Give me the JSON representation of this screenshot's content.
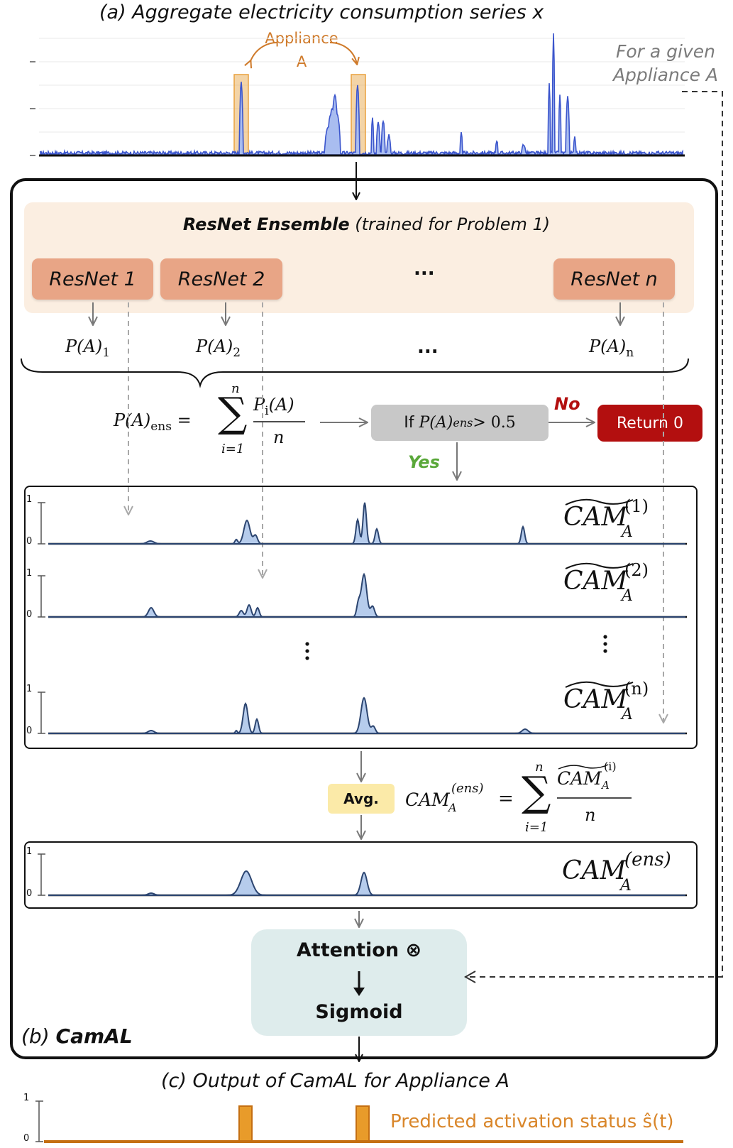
{
  "titles": {
    "aggregate": "(a) Aggregate electricity consumption series x",
    "output": "(c) Output of CamAL for Appliance A",
    "camal_prefix": "(b) ",
    "camal_name": "CamAL"
  },
  "annotations": {
    "given_line1": "For a given",
    "given_line2": "Appliance A",
    "appliance_line1": "Appliance",
    "appliance_line2": "A"
  },
  "ensemble": {
    "title_bold": "ResNet Ensemble",
    "title_rest": " (trained for Problem 1)",
    "models": [
      "ResNet 1",
      "ResNet 2",
      "ResNet n"
    ],
    "ellipsis": "...",
    "probs": [
      {
        "base": "P(A)",
        "sub": "1"
      },
      {
        "base": "P(A)",
        "sub": "2"
      },
      {
        "base": "P(A)",
        "sub": "n"
      }
    ]
  },
  "formulas": {
    "pens_lhs": "P(A)",
    "pens_sub": "ens",
    "sum_top": "n",
    "sum_bottom": "i=1",
    "frac_num": "P",
    "frac_num_sub": "i",
    "frac_num_rest": "(A)",
    "frac_den": "n",
    "cam_ens_lhs": "CAM",
    "cam_ens_sup": "(ens)",
    "cam_ens_sub": "A",
    "cam_ens_num": "CAM",
    "cam_ens_num_sup": "(i)",
    "cam_ens_num_sub": "A"
  },
  "decision": {
    "condition_prefix": "If ",
    "condition_var": "P(A)",
    "condition_sub": "ens",
    "condition_op": " > 0.5",
    "no": "No",
    "yes": "Yes",
    "return": "Return 0"
  },
  "cam_panels": {
    "label_base": "CAM",
    "label_sub": "A",
    "sups": [
      "(1)",
      "(2)",
      "(n)"
    ],
    "ens_sup": "(ens)",
    "axis_top": "1",
    "axis_bottom": "0"
  },
  "avg": "Avg.",
  "attention": {
    "line1": "Attention ⊗",
    "line2": "Sigmoid"
  },
  "output": {
    "predicted_label": "Predicted activation status ŝ(t)",
    "axis_top": "1",
    "axis_bottom": "0"
  },
  "colors": {
    "series_fill": "#a9bdf0",
    "series_line": "#3b55cc",
    "cam_fill": "#b6ccec",
    "cam_line": "#2c4570",
    "highlight": "#e9b15f",
    "output_line": "#d9862a",
    "return_box": "#b30f0f",
    "ensemble_panel": "#fbeee1",
    "resnet_box": "#e8a586",
    "avg_box": "#fbeaa8",
    "attention_box": "#deecec"
  }
}
